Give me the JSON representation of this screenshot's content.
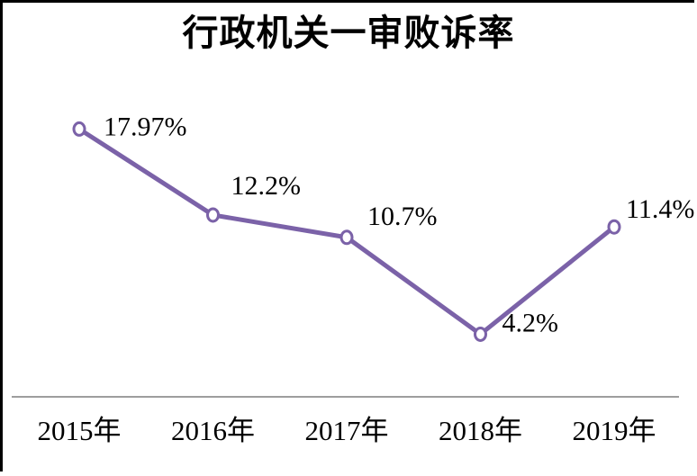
{
  "chart_data": {
    "type": "line",
    "title": "行政机关一审败诉率",
    "categories": [
      "2015年",
      "2016年",
      "2017年",
      "2018年",
      "2019年"
    ],
    "series": [
      {
        "name": "行政机关一审败诉率",
        "values": [
          17.97,
          12.2,
          10.7,
          4.2,
          11.4
        ],
        "data_labels": [
          "17.97%",
          "12.2%",
          "10.7%",
          "4.2%",
          "11.4%"
        ]
      }
    ],
    "ylim": [
      0,
      26
    ],
    "grid": false,
    "legend_position": "none",
    "colors": {
      "line": "#7B62A8",
      "marker_fill": "#FFFFFF",
      "marker_stroke": "#7B62A8",
      "axis_line": "#7F7F7F",
      "label_text": "#000000",
      "title_text": "#000000",
      "frame_border": "#000000"
    }
  }
}
